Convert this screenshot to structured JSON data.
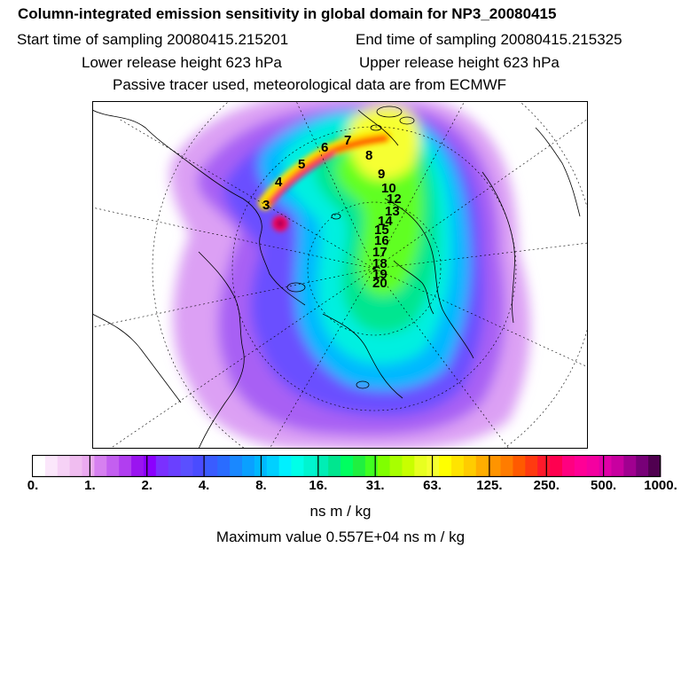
{
  "header": {
    "title": "Column-integrated emission sensitivity in global domain for NP3_20080415",
    "start_label": "Start time of sampling 20080415.215201",
    "end_label": "End time of sampling 20080415.215325",
    "lower_label": "Lower release height  623 hPa",
    "upper_label": "Upper release height  623 hPa",
    "tracer_label": "Passive tracer used, meteorological data are from ECMWF"
  },
  "map": {
    "projection": "polar stereographic (north pole)",
    "trajectory_labels": [
      "3",
      "4",
      "5",
      "6",
      "7",
      "8",
      "9",
      "10",
      "12",
      "13",
      "14",
      "15",
      "16",
      "17",
      "18",
      "19",
      "20"
    ]
  },
  "colorbar": {
    "tick_labels": [
      "0.",
      "1.",
      "2.",
      "4.",
      "8.",
      "16.",
      "31.",
      "63.",
      "125.",
      "250.",
      "500.",
      "1000."
    ],
    "colors": [
      "#ffffff",
      "#fbe7fb",
      "#f6d2f6",
      "#f0bdf0",
      "#ebaaf0",
      "#d680f0",
      "#c35ff0",
      "#b13ef0",
      "#9a14f0",
      "#8b00ff",
      "#7a30ff",
      "#6a40ff",
      "#5a50ff",
      "#4a4cff",
      "#3a5cff",
      "#2a6cff",
      "#1a88ff",
      "#0aa0ff",
      "#00b8ff",
      "#00d0ff",
      "#00f0ff",
      "#00ffe8",
      "#00f5d0",
      "#00eeb5",
      "#00e68f",
      "#00ff60",
      "#20f040",
      "#40ff20",
      "#80ff00",
      "#a8ff00",
      "#c8ff00",
      "#e8ff20",
      "#f6ff30",
      "#ffff00",
      "#ffe400",
      "#ffcc00",
      "#ffae00",
      "#ff9400",
      "#ff7c00",
      "#ff5a00",
      "#ff3a10",
      "#ff1a2a",
      "#ff0050",
      "#ff0080",
      "#ff0096",
      "#f400a0",
      "#e000a8",
      "#c800a0",
      "#a00090",
      "#780078",
      "#500050"
    ]
  },
  "units_label": "ns m / kg",
  "max_label": "Maximum value  0.557E+04 ns m / kg"
}
